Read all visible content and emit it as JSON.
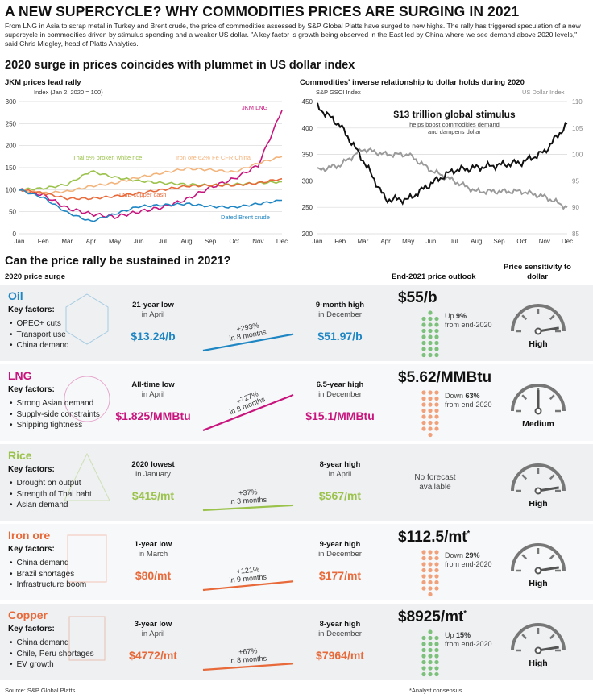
{
  "header": {
    "title": "A NEW SUPERCYCLE? WHY COMMODITIES PRICES ARE SURGING IN 2021",
    "intro": "From LNG in Asia to scrap metal in Turkey and Brent crude, the price of commodities assessed by S&P Global Platts have surged to new highs. The rally has triggered speculation of a new supercycle in commodities driven by stimulus spending and a weaker US dollar. \"A key factor is growth being observed in the East led by China where we see demand above 2020 levels,\" said Chris Midgley, head of Platts Analytics."
  },
  "section1_title": "2020 surge in prices coincides with plummet in US dollar index",
  "section2_title": "Can the price rally be sustained in 2021?",
  "chart_data": [
    {
      "type": "line",
      "title": "JKM prices lead rally",
      "ylabel": "Index (Jan 2, 2020 = 100)",
      "ylim": [
        0,
        300
      ],
      "yticks": [
        "0",
        "50",
        "100",
        "150",
        "200",
        "250",
        "300"
      ],
      "x": [
        "Jan",
        "Feb",
        "Mar",
        "Apr",
        "May",
        "Jun",
        "Jul",
        "Aug",
        "Sep",
        "Oct",
        "Nov",
        "Dec"
      ],
      "series": [
        {
          "name": "JKM LNG",
          "color": "#c8157e",
          "values": [
            100,
            88,
            58,
            45,
            38,
            50,
            60,
            78,
            105,
            125,
            155,
            280
          ]
        },
        {
          "name": "Thai 5% broken white rice",
          "color": "#9bc24a",
          "values": [
            100,
            103,
            112,
            142,
            128,
            120,
            115,
            112,
            110,
            112,
            115,
            118
          ]
        },
        {
          "name": "Iron ore 62% Fe CFR China",
          "color": "#f3b47c",
          "values": [
            100,
            92,
            96,
            108,
            115,
            128,
            138,
            148,
            145,
            140,
            160,
            175
          ]
        },
        {
          "name": "LME copper cash",
          "color": "#e8693a",
          "values": [
            100,
            92,
            80,
            80,
            85,
            92,
            100,
            108,
            110,
            110,
            115,
            125
          ]
        },
        {
          "name": "Dated Brent crude",
          "color": "#1f86c4",
          "values": [
            100,
            82,
            48,
            28,
            45,
            62,
            65,
            68,
            62,
            60,
            68,
            76
          ]
        }
      ]
    },
    {
      "type": "line",
      "title": "Commodities' inverse relationship to dollar holds during 2020",
      "ylabel": "S&P GSCI Index",
      "y2label": "US Dollar Index",
      "ylim": [
        200,
        450
      ],
      "y2lim": [
        85,
        110
      ],
      "yticks": [
        "200",
        "250",
        "300",
        "350",
        "400",
        "450"
      ],
      "y2ticks": [
        "85",
        "90",
        "95",
        "100",
        "105",
        "110"
      ],
      "x": [
        "Jan",
        "Feb",
        "Mar",
        "Apr",
        "May",
        "Jun",
        "Jul",
        "Aug",
        "Sep",
        "Oct",
        "Nov",
        "Dec"
      ],
      "annotation_title": "$13 trillion global stimulus",
      "annotation_sub": "helps boost commodities demand and dampens dollar",
      "series": [
        {
          "name": "S&P GSCI Index",
          "color": "#111111",
          "values": [
            440,
            405,
            340,
            265,
            265,
            295,
            320,
            325,
            330,
            335,
            355,
            408
          ]
        },
        {
          "name": "US Dollar Index",
          "color": "#9a9a9a",
          "values": [
            97,
            98,
            101,
            100,
            100,
            97,
            95,
            93,
            93,
            93,
            92,
            90
          ]
        }
      ]
    }
  ],
  "table": {
    "col_2020": "2020 price surge",
    "col_outlook": "End-2021 price outlook",
    "col_sens": "Price sensitivity to dollar",
    "key_factors_label": "Key factors:",
    "rows": [
      {
        "name": "Oil",
        "color": "#1f86c4",
        "factors": [
          "OPEC+ cuts",
          "Transport use",
          "China demand"
        ],
        "low_label": "21-year low",
        "low_when": "in April",
        "low_price": "$13.24/b",
        "change": "+293%",
        "change_period": "in 8 months",
        "high_label": "9-month high",
        "high_when": "in December",
        "high_price": "$51.97/b",
        "outlook": "$55/b",
        "outlook_dir": "Up",
        "outlook_pct": "9%",
        "outlook_tail": "from end-2020",
        "sensitivity": "High",
        "sens_level": 0.95
      },
      {
        "name": "LNG",
        "color": "#c8157e",
        "factors": [
          "Strong Asian demand",
          "Supply-side constraints",
          "Shipping tightness"
        ],
        "low_label": "All-time low",
        "low_when": "in April",
        "low_price": "$1.825/MMBtu",
        "change": "+727%",
        "change_period": "in 8 months",
        "high_label": "6.5-year high",
        "high_when": "in December",
        "high_price": "$15.1/MMBtu",
        "outlook": "$5.62/MMBtu",
        "outlook_dir": "Down",
        "outlook_pct": "63%",
        "outlook_tail": "from end-2020",
        "sensitivity": "Medium",
        "sens_level": 0.5
      },
      {
        "name": "Rice",
        "color": "#9bc24a",
        "factors": [
          "Drought on output",
          "Strength of Thai baht",
          "Asian demand"
        ],
        "low_label": "2020 lowest",
        "low_when": "in January",
        "low_price": "$415/mt",
        "change": "+37%",
        "change_period": "in 3 months",
        "high_label": "8-year high",
        "high_when": "in April",
        "high_price": "$567/mt",
        "outlook": "No forecast available",
        "sensitivity": "High",
        "sens_level": 0.95
      },
      {
        "name": "Iron ore",
        "color": "#e8693a",
        "factors": [
          "China demand",
          "Brazil shortages",
          "Infrastructure boom"
        ],
        "low_label": "1-year low",
        "low_when": "in March",
        "low_price": "$80/mt",
        "change": "+121%",
        "change_period": "in 9 months",
        "high_label": "9-year high",
        "high_when": "in December",
        "high_price": "$177/mt",
        "outlook": "$112.5/mt",
        "outlook_mark": "*",
        "outlook_dir": "Down",
        "outlook_pct": "29%",
        "outlook_tail": "from end-2020",
        "sensitivity": "High",
        "sens_level": 0.95
      },
      {
        "name": "Copper",
        "color": "#e8693a",
        "factors": [
          "China demand",
          "Chile, Peru shortages",
          "EV growth"
        ],
        "low_label": "3-year low",
        "low_when": "in April",
        "low_price": "$4772/mt",
        "change": "+67%",
        "change_period": "in 8 months",
        "high_label": "8-year high",
        "high_when": "in December",
        "high_price": "$7964/mt",
        "outlook": "$8925/mt",
        "outlook_mark": "*",
        "outlook_dir": "Up",
        "outlook_pct": "15%",
        "outlook_tail": "from end-2020",
        "sensitivity": "High",
        "sens_level": 0.95
      }
    ]
  },
  "footer": {
    "source": "Source: S&P Global Platts",
    "note": "*Analyst consensus"
  }
}
